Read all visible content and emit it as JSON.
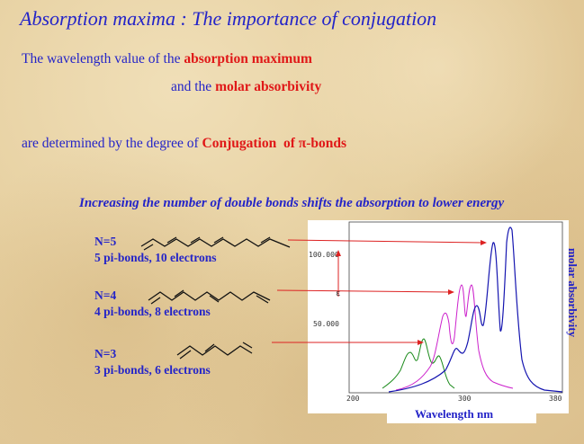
{
  "header": {
    "title": "Absorption maxima : The importance of conjugation"
  },
  "intro": {
    "line1": {
      "text": "The wavelength value of the ",
      "emphasis": "absorption maximum"
    },
    "line2": {
      "text": "and the ",
      "emphasis": "molar absorbivity"
    },
    "line3": {
      "text": "are determined by the degree of ",
      "emphasis": "Conjugation  of π-bonds"
    }
  },
  "subtitle": "Increasing the number of double bonds shifts the absorption to lower energy",
  "molecules": [
    {
      "label": "N=5",
      "description": "5 pi-bonds, 10 electrons"
    },
    {
      "label": "N=4",
      "description": "4 pi-bonds, 8 electrons"
    },
    {
      "label": "N=3",
      "description": "3 pi-bonds, 6 electrons"
    }
  ],
  "spectrum": {
    "y_axis_ticks": [
      "100.000",
      "50.000"
    ],
    "x_axis_ticks": [
      "200",
      "300",
      "380"
    ],
    "y_axis_label": "molar absorbivity",
    "x_axis_label": "Wavelength nm"
  }
}
